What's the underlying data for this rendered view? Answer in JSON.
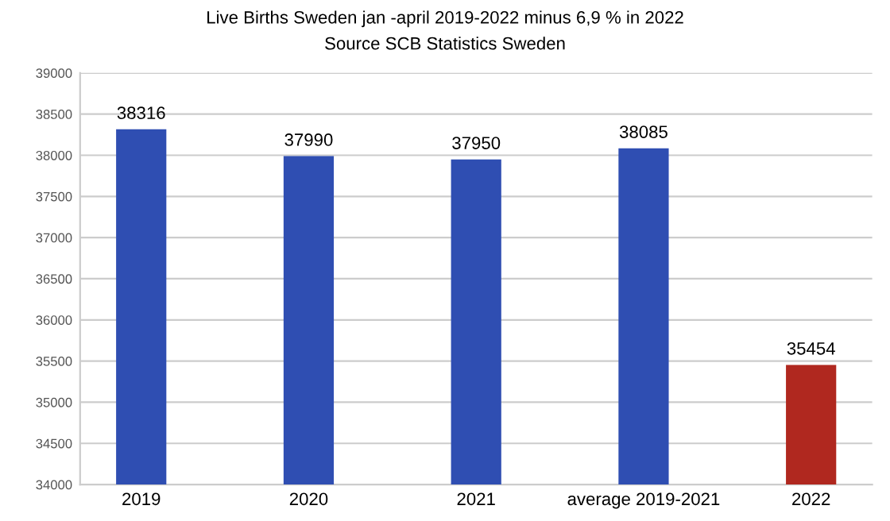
{
  "chart_data": {
    "type": "bar",
    "title": "Live Births Sweden jan -april 2019-2022 minus 6,9 % in 2022",
    "subtitle": "Source SCB Statistics Sweden",
    "categories": [
      "2019",
      "2020",
      "2021",
      "average 2019-2021",
      "2022"
    ],
    "values": [
      38316,
      37990,
      37950,
      38085,
      35454
    ],
    "colors": [
      "#2f4eb2",
      "#2f4eb2",
      "#2f4eb2",
      "#2f4eb2",
      "#b0281f"
    ],
    "ylim": [
      34000,
      39000
    ],
    "yticks": [
      34000,
      34500,
      35000,
      35500,
      36000,
      36500,
      37000,
      37500,
      38000,
      38500,
      39000
    ],
    "grid": "y",
    "data_labels": true
  }
}
